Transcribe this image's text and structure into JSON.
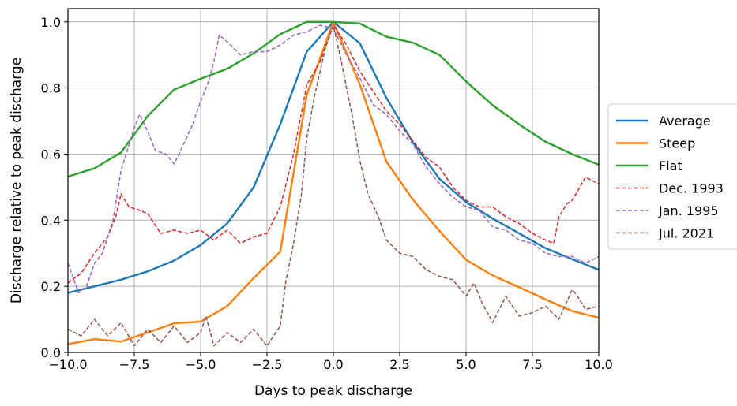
{
  "chart_data": {
    "type": "line",
    "xlabel": "Days to peak discharge",
    "ylabel": "Discharge relative to peak discharge",
    "xlim": [
      -10,
      10
    ],
    "ylim": [
      0,
      1.04
    ],
    "xticks": [
      -10,
      -7.5,
      -5,
      -2.5,
      0,
      2.5,
      5,
      7.5,
      10
    ],
    "xtick_labels": [
      "−10.0",
      "−7.5",
      "−5.0",
      "−2.5",
      "0.0",
      "2.5",
      "5.0",
      "7.5",
      "10.0"
    ],
    "yticks": [
      0,
      0.2,
      0.4,
      0.6,
      0.8,
      1.0
    ],
    "ytick_labels": [
      "0.0",
      "0.2",
      "0.4",
      "0.6",
      "0.8",
      "1.0"
    ],
    "grid": true,
    "legend_position": "outside-right",
    "series": [
      {
        "name": "Average",
        "color": "#1f77b4",
        "style": "solid",
        "x": [
          -10,
          -9,
          -8,
          -7,
          -6,
          -5,
          -4,
          -3,
          -2,
          -1,
          0,
          1,
          2,
          3,
          4,
          5,
          6,
          7,
          8,
          9,
          10
        ],
        "y": [
          0.18,
          0.2,
          0.22,
          0.245,
          0.278,
          0.325,
          0.39,
          0.5,
          0.69,
          0.91,
          1.0,
          0.935,
          0.77,
          0.635,
          0.525,
          0.455,
          0.405,
          0.36,
          0.315,
          0.282,
          0.25
        ]
      },
      {
        "name": "Steep",
        "color": "#ff7f0e",
        "style": "solid",
        "x": [
          -10,
          -9,
          -8,
          -7,
          -6,
          -5,
          -4,
          -3,
          -2,
          -1,
          0,
          1,
          2,
          3,
          4,
          5,
          6,
          7,
          8,
          9,
          10
        ],
        "y": [
          0.025,
          0.04,
          0.033,
          0.06,
          0.088,
          0.093,
          0.14,
          0.225,
          0.305,
          0.78,
          1.0,
          0.81,
          0.577,
          0.462,
          0.367,
          0.28,
          0.233,
          0.197,
          0.16,
          0.125,
          0.105
        ]
      },
      {
        "name": "Flat",
        "color": "#2ca02c",
        "style": "solid",
        "x": [
          -10,
          -9,
          -8,
          -7,
          -6,
          -5,
          -4,
          -3,
          -2,
          -1,
          0,
          1,
          2,
          3,
          4,
          5,
          6,
          7,
          8,
          9,
          10
        ],
        "y": [
          0.532,
          0.557,
          0.605,
          0.715,
          0.795,
          0.828,
          0.858,
          0.905,
          0.963,
          1.0,
          1.0,
          0.995,
          0.955,
          0.937,
          0.9,
          0.82,
          0.748,
          0.69,
          0.637,
          0.6,
          0.568
        ]
      },
      {
        "name": "Dec. 1993",
        "color": "#d62728",
        "style": "dashed",
        "x": [
          -10,
          -9.5,
          -9,
          -8.5,
          -8.2,
          -8,
          -7.7,
          -7.3,
          -7,
          -6.5,
          -6,
          -5.5,
          -5,
          -4.5,
          -4,
          -3.5,
          -3,
          -2.5,
          -2,
          -1.5,
          -1,
          -0.5,
          0,
          0.5,
          1,
          1.5,
          2,
          2.5,
          3,
          3.5,
          4,
          4.5,
          5,
          5.5,
          6,
          6.5,
          7,
          7.5,
          8,
          8.3,
          8.5,
          8.8,
          9,
          9.5,
          10
        ],
        "y": [
          0.21,
          0.24,
          0.3,
          0.35,
          0.41,
          0.48,
          0.44,
          0.43,
          0.42,
          0.36,
          0.37,
          0.36,
          0.37,
          0.34,
          0.37,
          0.33,
          0.35,
          0.36,
          0.44,
          0.6,
          0.81,
          0.88,
          0.99,
          0.93,
          0.85,
          0.79,
          0.73,
          0.69,
          0.64,
          0.59,
          0.56,
          0.5,
          0.46,
          0.44,
          0.44,
          0.41,
          0.39,
          0.36,
          0.34,
          0.33,
          0.41,
          0.45,
          0.46,
          0.53,
          0.51
        ]
      },
      {
        "name": "Jan. 1995",
        "color": "#9467bd",
        "style": "dashed",
        "x": [
          -10,
          -9.6,
          -9.3,
          -9,
          -8.7,
          -8.3,
          -8,
          -7.5,
          -7.3,
          -7,
          -6.7,
          -6.3,
          -6,
          -5.7,
          -5.3,
          -5,
          -4.7,
          -4.5,
          -4.3,
          -4,
          -3.5,
          -3,
          -2.5,
          -2,
          -1.5,
          -1,
          -0.5,
          0,
          0.5,
          1,
          1.5,
          2,
          2.5,
          3,
          3.5,
          4,
          4.5,
          5,
          5.5,
          6,
          6.5,
          7,
          7.5,
          8,
          8.5,
          9,
          9.5,
          10
        ],
        "y": [
          0.27,
          0.18,
          0.2,
          0.27,
          0.3,
          0.4,
          0.55,
          0.68,
          0.72,
          0.67,
          0.61,
          0.6,
          0.57,
          0.62,
          0.69,
          0.76,
          0.82,
          0.88,
          0.96,
          0.94,
          0.9,
          0.91,
          0.91,
          0.93,
          0.96,
          0.97,
          0.99,
          0.98,
          0.9,
          0.83,
          0.75,
          0.72,
          0.67,
          0.63,
          0.56,
          0.51,
          0.47,
          0.44,
          0.43,
          0.38,
          0.37,
          0.34,
          0.33,
          0.3,
          0.29,
          0.29,
          0.27,
          0.29
        ]
      },
      {
        "name": "Jul. 2021",
        "color": "#8c564b",
        "style": "dashed",
        "x": [
          -10,
          -9.5,
          -9,
          -8.5,
          -8,
          -7.5,
          -7,
          -6.5,
          -6,
          -5.5,
          -5,
          -4.8,
          -4.5,
          -4,
          -3.5,
          -3,
          -2.5,
          -2,
          -1.8,
          -1.5,
          -1.2,
          -1,
          -0.7,
          -0.3,
          0,
          0.3,
          0.7,
          1,
          1.3,
          1.7,
          2,
          2.5,
          3,
          3.5,
          4,
          4.5,
          5,
          5.3,
          5.6,
          6,
          6.5,
          7,
          7.5,
          8,
          8.5,
          9,
          9.2,
          9.5,
          10
        ],
        "y": [
          0.07,
          0.05,
          0.1,
          0.05,
          0.09,
          0.02,
          0.07,
          0.03,
          0.08,
          0.03,
          0.06,
          0.11,
          0.02,
          0.06,
          0.03,
          0.07,
          0.02,
          0.08,
          0.21,
          0.33,
          0.48,
          0.65,
          0.78,
          0.92,
          0.99,
          0.88,
          0.72,
          0.58,
          0.48,
          0.41,
          0.34,
          0.3,
          0.29,
          0.25,
          0.23,
          0.22,
          0.17,
          0.21,
          0.15,
          0.09,
          0.17,
          0.11,
          0.12,
          0.14,
          0.1,
          0.19,
          0.17,
          0.13,
          0.14
        ]
      }
    ]
  }
}
